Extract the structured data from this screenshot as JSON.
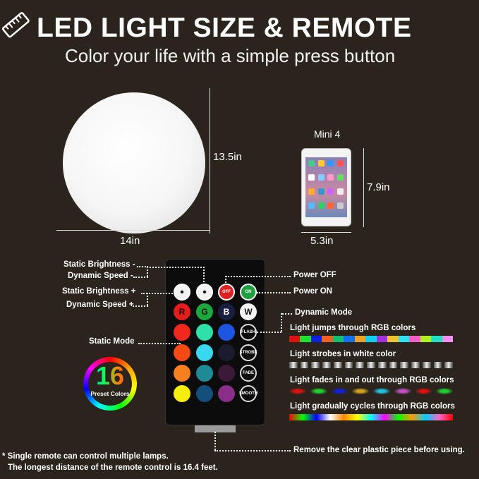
{
  "header": {
    "title": "LED LIGHT SIZE & REMOTE",
    "subtitle": "Color your life with a simple press button",
    "icon": "ruler-icon"
  },
  "ball": {
    "height": "13.5in",
    "width": "14in"
  },
  "tablet": {
    "name": "Mini 4",
    "height": "7.9in",
    "width": "5.3in"
  },
  "remote": {
    "left_labels": [
      "Static Brightness -",
      "Dynamic Speed -",
      "Static Brightness +",
      "Dynamic Speed +",
      "Static Mode"
    ],
    "right_labels": [
      "Power OFF",
      "Power ON",
      "Dynamic Mode"
    ],
    "buttons": [
      {
        "color": "#f2f2f2",
        "label": "",
        "icon": "brightness-down-icon"
      },
      {
        "color": "#f2f2f2",
        "label": "",
        "icon": "brightness-up-icon"
      },
      {
        "color": "#e02020",
        "label": "OFF",
        "icon": "power-icon"
      },
      {
        "color": "#1fa040",
        "label": "ON",
        "icon": "power-icon"
      },
      {
        "color": "#e51c1c",
        "label": "R"
      },
      {
        "color": "#1ca83c",
        "label": "G"
      },
      {
        "color": "#1a1e40",
        "label": "B"
      },
      {
        "color": "#f5f5f5",
        "label": "W"
      },
      {
        "color": "#f0281e",
        "label": ""
      },
      {
        "color": "#2fe0a8",
        "label": ""
      },
      {
        "color": "#1d55e0",
        "label": ""
      },
      {
        "color": "",
        "label": "FLASH"
      },
      {
        "color": "#f54a14",
        "label": ""
      },
      {
        "color": "#3ad8f0",
        "label": ""
      },
      {
        "color": "#1b1b30",
        "label": ""
      },
      {
        "color": "",
        "label": "STROBE"
      },
      {
        "color": "#f58020",
        "label": ""
      },
      {
        "color": "#1e8a96",
        "label": ""
      },
      {
        "color": "#3a1a38",
        "label": ""
      },
      {
        "color": "",
        "label": "FADE"
      },
      {
        "color": "#f7ee10",
        "label": ""
      },
      {
        "color": "#134f7a",
        "label": ""
      },
      {
        "color": "#8a2e8a",
        "label": ""
      },
      {
        "color": "",
        "label": "SMOOTH"
      }
    ],
    "preset": {
      "count": "16",
      "label": "Preset Colors"
    }
  },
  "modes": [
    {
      "text": "Light jumps through RGB colors",
      "type": "jump",
      "colors": [
        "#e01010",
        "#20e030",
        "#1020e0",
        "#f06020",
        "#10c070",
        "#1070f0",
        "#f0a020",
        "#10d0f0",
        "#a030e0",
        "#f0c030",
        "#30e0f0",
        "#f060c0",
        "#b0f020",
        "#20e0c0",
        "#f090f0"
      ]
    },
    {
      "text": "Light strobes in white color",
      "type": "strobe"
    },
    {
      "text": "Light fades in and out through RGB colors",
      "type": "fade",
      "colors": [
        "#e01010",
        "#20d030",
        "#1020e0",
        "#d0a020",
        "#20c0e0",
        "#c050c0",
        "#e01010",
        "#20d030"
      ]
    },
    {
      "text": "Light  gradually cycles through RGB colors",
      "type": "cycle"
    }
  ],
  "notes": {
    "remove": "Remove the clear plastic piece before using.",
    "line1": "* Single remote can control multiple lamps.",
    "line2": "The longest distance of the remote control is 16.4 feet."
  }
}
